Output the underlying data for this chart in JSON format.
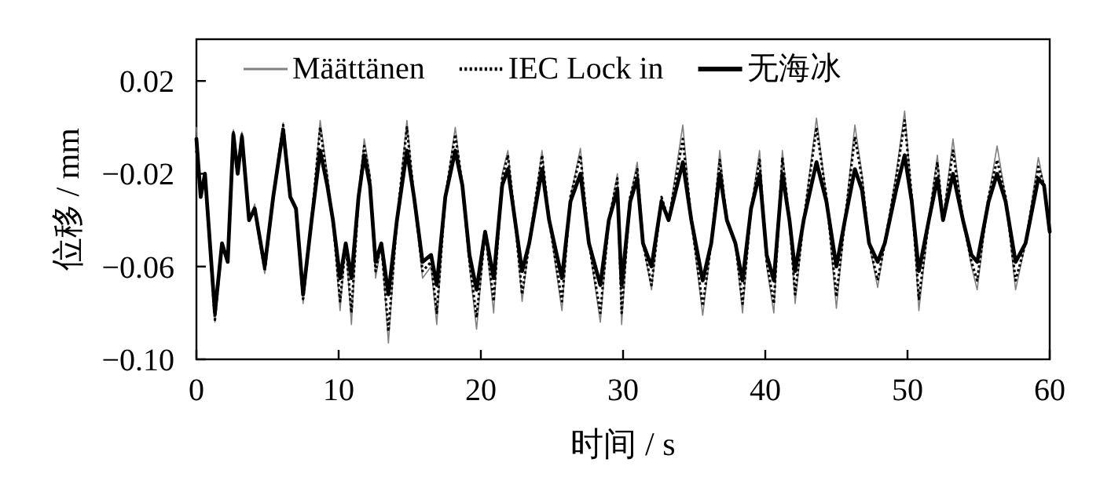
{
  "chart_data": {
    "type": "line",
    "xlabel": "时间 / s",
    "ylabel": "位移 / mm",
    "xlim": [
      0,
      60
    ],
    "ylim": [
      -0.1,
      0.038
    ],
    "xticks": [
      0,
      10,
      20,
      30,
      40,
      50,
      60
    ],
    "yticks": [
      {
        "value": 0.02,
        "label": "0.02"
      },
      {
        "value": -0.02,
        "label": "−0.02"
      },
      {
        "value": -0.06,
        "label": "−0.06"
      },
      {
        "value": -0.1,
        "label": "−0.10"
      }
    ],
    "legend": "top",
    "grid": false,
    "series": [
      {
        "name": "Määttänen",
        "color": "#808080",
        "line_style": "solid",
        "x": [
          0,
          0.3,
          0.6,
          1.3,
          1.8,
          2.2,
          2.6,
          2.9,
          3.2,
          3.7,
          4.1,
          4.8,
          5.4,
          6.1,
          6.6,
          7.0,
          7.5,
          8.1,
          8.7,
          9.2,
          9.6,
          10.1,
          10.5,
          10.9,
          11.4,
          11.8,
          12.2,
          12.6,
          13.0,
          13.5,
          14.1,
          14.8,
          15.3,
          15.9,
          16.5,
          16.9,
          17.5,
          18.2,
          18.7,
          19.2,
          19.7,
          20.3,
          20.9,
          21.5,
          21.9,
          22.4,
          22.9,
          23.4,
          24.3,
          24.8,
          25.7,
          26.3,
          27.0,
          27.6,
          28.4,
          29.0,
          29.6,
          29.9,
          30.5,
          31.0,
          31.4,
          32.0,
          32.7,
          33.2,
          34.2,
          34.8,
          35.6,
          36.2,
          36.8,
          37.3,
          37.9,
          38.4,
          39.0,
          39.6,
          40.1,
          40.6,
          41.2,
          41.7,
          42.1,
          42.7,
          43.6,
          44.3,
          45.0,
          45.6,
          46.3,
          46.8,
          47.3,
          47.9,
          48.4,
          49.2,
          49.8,
          50.3,
          50.8,
          51.5,
          52.1,
          52.5,
          53.2,
          53.9,
          54.5,
          54.9,
          55.7,
          56.3,
          56.9,
          57.6,
          58.3,
          59.2,
          59.6,
          60
        ],
        "values": [
          0.0,
          -0.03,
          -0.02,
          -0.084,
          -0.05,
          -0.058,
          -0.001,
          -0.02,
          -0.002,
          -0.04,
          -0.033,
          -0.063,
          -0.03,
          0.002,
          -0.03,
          -0.035,
          -0.076,
          -0.04,
          0.003,
          -0.02,
          -0.04,
          -0.079,
          -0.05,
          -0.085,
          -0.03,
          -0.005,
          -0.02,
          -0.065,
          -0.05,
          -0.093,
          -0.04,
          0.003,
          -0.03,
          -0.065,
          -0.06,
          -0.085,
          -0.03,
          0.0,
          -0.025,
          -0.06,
          -0.087,
          -0.045,
          -0.08,
          -0.02,
          -0.01,
          -0.04,
          -0.075,
          -0.05,
          -0.01,
          -0.04,
          -0.079,
          -0.03,
          -0.009,
          -0.05,
          -0.084,
          -0.04,
          -0.02,
          -0.085,
          -0.03,
          -0.015,
          -0.05,
          -0.07,
          -0.03,
          -0.04,
          0.001,
          -0.04,
          -0.081,
          -0.05,
          -0.01,
          -0.04,
          -0.05,
          -0.08,
          -0.035,
          -0.01,
          -0.06,
          -0.08,
          -0.01,
          -0.04,
          -0.076,
          -0.04,
          0.004,
          -0.03,
          -0.078,
          -0.04,
          0.001,
          -0.02,
          -0.05,
          -0.069,
          -0.05,
          -0.02,
          0.007,
          -0.03,
          -0.079,
          -0.04,
          -0.012,
          -0.04,
          -0.005,
          -0.04,
          -0.06,
          -0.07,
          -0.03,
          -0.008,
          -0.03,
          -0.07,
          -0.05,
          -0.013,
          -0.025,
          -0.045
        ]
      },
      {
        "name": "IEC Lock in",
        "color": "#000000",
        "line_style": "dotted",
        "x": [
          0,
          0.3,
          0.6,
          1.3,
          1.8,
          2.2,
          2.6,
          2.9,
          3.2,
          3.7,
          4.1,
          4.8,
          5.4,
          6.1,
          6.6,
          7.0,
          7.5,
          8.1,
          8.7,
          9.2,
          9.6,
          10.1,
          10.5,
          10.9,
          11.4,
          11.8,
          12.2,
          12.6,
          13.0,
          13.5,
          14.1,
          14.8,
          15.3,
          15.9,
          16.5,
          16.9,
          17.5,
          18.2,
          18.7,
          19.2,
          19.7,
          20.3,
          20.9,
          21.5,
          21.9,
          22.4,
          22.9,
          23.4,
          24.3,
          24.8,
          25.7,
          26.3,
          27.0,
          27.6,
          28.4,
          29.0,
          29.6,
          29.9,
          30.5,
          31.0,
          31.4,
          32.0,
          32.7,
          33.2,
          34.2,
          34.8,
          35.6,
          36.2,
          36.8,
          37.3,
          37.9,
          38.4,
          39.0,
          39.6,
          40.1,
          40.6,
          41.2,
          41.7,
          42.1,
          42.7,
          43.6,
          44.3,
          45.0,
          45.6,
          46.3,
          46.8,
          47.3,
          47.9,
          48.4,
          49.2,
          49.8,
          50.3,
          50.8,
          51.5,
          52.1,
          52.5,
          53.2,
          53.9,
          54.5,
          54.9,
          55.7,
          56.3,
          56.9,
          57.6,
          58.3,
          59.2,
          59.6,
          60
        ],
        "values": [
          -0.01,
          -0.03,
          -0.02,
          -0.083,
          -0.05,
          -0.058,
          -0.002,
          -0.02,
          -0.003,
          -0.04,
          -0.035,
          -0.062,
          -0.03,
          0.001,
          -0.03,
          -0.035,
          -0.074,
          -0.04,
          0.0,
          -0.022,
          -0.04,
          -0.075,
          -0.05,
          -0.08,
          -0.03,
          -0.008,
          -0.022,
          -0.062,
          -0.05,
          -0.088,
          -0.04,
          0.0,
          -0.03,
          -0.062,
          -0.058,
          -0.08,
          -0.03,
          -0.003,
          -0.025,
          -0.058,
          -0.082,
          -0.045,
          -0.075,
          -0.022,
          -0.012,
          -0.04,
          -0.072,
          -0.05,
          -0.012,
          -0.04,
          -0.075,
          -0.03,
          -0.012,
          -0.05,
          -0.08,
          -0.04,
          -0.022,
          -0.08,
          -0.03,
          -0.018,
          -0.05,
          -0.068,
          -0.03,
          -0.04,
          -0.005,
          -0.04,
          -0.077,
          -0.05,
          -0.014,
          -0.04,
          -0.05,
          -0.076,
          -0.035,
          -0.014,
          -0.058,
          -0.076,
          -0.013,
          -0.04,
          -0.072,
          -0.04,
          0.0,
          -0.03,
          -0.073,
          -0.04,
          -0.004,
          -0.022,
          -0.05,
          -0.066,
          -0.05,
          -0.022,
          0.003,
          -0.03,
          -0.074,
          -0.04,
          -0.015,
          -0.04,
          -0.01,
          -0.04,
          -0.058,
          -0.066,
          -0.03,
          -0.014,
          -0.03,
          -0.066,
          -0.05,
          -0.017,
          -0.025,
          -0.045
        ]
      },
      {
        "name": "无海冰",
        "color": "#000000",
        "line_style": "solid",
        "x": [
          0,
          0.3,
          0.6,
          1.3,
          1.8,
          2.2,
          2.6,
          2.9,
          3.2,
          3.7,
          4.1,
          4.8,
          5.4,
          6.1,
          6.6,
          7.0,
          7.5,
          8.1,
          8.7,
          9.2,
          9.6,
          10.1,
          10.5,
          10.9,
          11.4,
          11.8,
          12.2,
          12.6,
          13.0,
          13.5,
          14.1,
          14.8,
          15.3,
          15.9,
          16.5,
          16.9,
          17.5,
          18.2,
          18.7,
          19.2,
          19.7,
          20.3,
          20.9,
          21.5,
          21.9,
          22.4,
          22.9,
          23.4,
          24.3,
          24.8,
          25.7,
          26.3,
          27.0,
          27.6,
          28.4,
          29.0,
          29.6,
          29.9,
          30.5,
          31.0,
          31.4,
          32.0,
          32.7,
          33.2,
          34.2,
          34.8,
          35.6,
          36.2,
          36.8,
          37.3,
          37.9,
          38.4,
          39.0,
          39.6,
          40.1,
          40.6,
          41.2,
          41.7,
          42.1,
          42.7,
          43.6,
          44.3,
          45.0,
          45.6,
          46.3,
          46.8,
          47.3,
          47.9,
          48.4,
          49.2,
          49.8,
          50.3,
          50.8,
          51.5,
          52.1,
          52.5,
          53.2,
          53.9,
          54.5,
          54.9,
          55.7,
          56.3,
          56.9,
          57.6,
          58.3,
          59.2,
          59.6,
          60
        ],
        "values": [
          -0.005,
          -0.03,
          -0.02,
          -0.08,
          -0.05,
          -0.058,
          -0.003,
          -0.02,
          -0.004,
          -0.04,
          -0.035,
          -0.06,
          -0.03,
          -0.001,
          -0.03,
          -0.035,
          -0.072,
          -0.04,
          -0.01,
          -0.025,
          -0.04,
          -0.065,
          -0.05,
          -0.065,
          -0.03,
          -0.012,
          -0.025,
          -0.058,
          -0.05,
          -0.072,
          -0.04,
          -0.01,
          -0.03,
          -0.058,
          -0.055,
          -0.068,
          -0.03,
          -0.01,
          -0.025,
          -0.055,
          -0.07,
          -0.045,
          -0.065,
          -0.025,
          -0.018,
          -0.04,
          -0.062,
          -0.05,
          -0.018,
          -0.04,
          -0.065,
          -0.032,
          -0.02,
          -0.05,
          -0.068,
          -0.04,
          -0.027,
          -0.068,
          -0.032,
          -0.022,
          -0.05,
          -0.06,
          -0.032,
          -0.04,
          -0.015,
          -0.04,
          -0.066,
          -0.05,
          -0.02,
          -0.04,
          -0.05,
          -0.066,
          -0.035,
          -0.02,
          -0.055,
          -0.066,
          -0.02,
          -0.04,
          -0.062,
          -0.04,
          -0.015,
          -0.032,
          -0.06,
          -0.04,
          -0.018,
          -0.027,
          -0.05,
          -0.058,
          -0.05,
          -0.027,
          -0.012,
          -0.032,
          -0.062,
          -0.04,
          -0.022,
          -0.04,
          -0.02,
          -0.04,
          -0.055,
          -0.058,
          -0.032,
          -0.02,
          -0.032,
          -0.058,
          -0.05,
          -0.022,
          -0.025,
          -0.045
        ]
      }
    ]
  }
}
